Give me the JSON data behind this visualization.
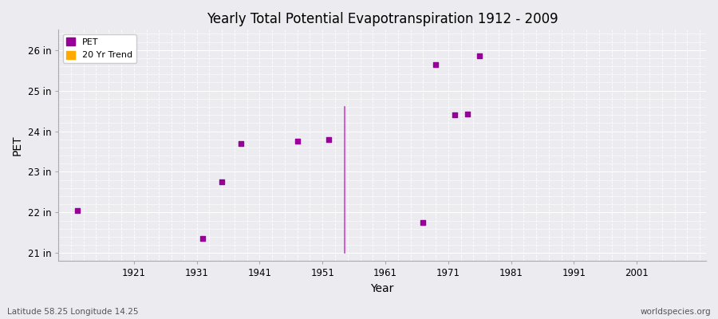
{
  "title": "Yearly Total Potential Evapotranspiration 1912 - 2009",
  "xlabel": "Year",
  "ylabel": "PET",
  "footer_left": "Latitude 58.25 Longitude 14.25",
  "footer_right": "worldspecies.org",
  "xlim": [
    1909,
    2012
  ],
  "ylim": [
    20.8,
    26.5
  ],
  "yticks": [
    21,
    22,
    23,
    24,
    25,
    26
  ],
  "ytick_labels": [
    "21 in",
    "22 in",
    "23 in",
    "24 in",
    "25 in",
    "26 in"
  ],
  "xticks": [
    1921,
    1931,
    1941,
    1951,
    1961,
    1971,
    1981,
    1991,
    2001
  ],
  "pet_data": [
    [
      1912,
      22.05
    ],
    [
      1932,
      21.35
    ],
    [
      1935,
      22.75
    ],
    [
      1938,
      23.7
    ],
    [
      1947,
      23.75
    ],
    [
      1952,
      23.8
    ],
    [
      1967,
      21.75
    ],
    [
      1969,
      25.65
    ],
    [
      1972,
      24.4
    ],
    [
      1974,
      24.42
    ],
    [
      1976,
      25.85
    ]
  ],
  "trend_line": [
    [
      1954.5,
      24.6
    ],
    [
      1954.5,
      21.0
    ]
  ],
  "pet_color": "#990099",
  "trend_line_color": "#cc44cc",
  "background_color": "#ebebf0",
  "grid_color": "#ffffff",
  "marker_size": 5,
  "legend_entries": [
    "PET",
    "20 Yr Trend"
  ],
  "legend_colors": [
    "#990099",
    "#ffaa00"
  ]
}
